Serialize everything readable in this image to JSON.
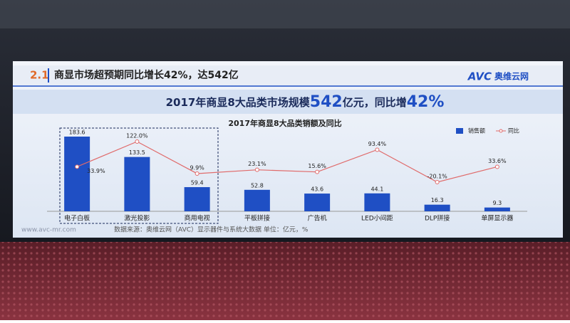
{
  "slide": {
    "section_number": "2.1",
    "heading": "商显市场超预期同比增长42%，达542亿",
    "logo": "AVC",
    "logo_name": "奥维云网",
    "headline": {
      "prefix": "2017年商显8大品类市场规模",
      "size": "542",
      "middle": "亿元，同比增",
      "growth": "42%"
    },
    "website": "www.avc-mr.com",
    "source": "数据来源：奥维云网（AVC）显示器件与系统大数据   单位：亿元，%"
  },
  "chart_data": {
    "type": "bar",
    "title": "2017年商显8大品类销额及同比",
    "categories": [
      "电子白板",
      "激光投影",
      "商用电视",
      "平板拼接",
      "广告机",
      "LED小间距",
      "DLP拼接",
      "单屏显示器"
    ],
    "series": [
      {
        "name": "销售额",
        "color": "#1f4fc4",
        "values": [
          183.6,
          133.5,
          59.4,
          52.8,
          43.6,
          44.1,
          16.3,
          9.3
        ]
      },
      {
        "name": "同比",
        "type": "line",
        "axis": "y2",
        "color": "#e06a6a",
        "values": [
          33.9,
          122.0,
          9.9,
          23.1,
          15.6,
          93.4,
          -20.1,
          33.6
        ],
        "value_labels": [
          "33.9%",
          "122.0%",
          "9.9%",
          "23.1%",
          "15.6%",
          "93.4%",
          "-20.1%",
          "33.6%"
        ]
      }
    ],
    "legend": "top-right"
  }
}
